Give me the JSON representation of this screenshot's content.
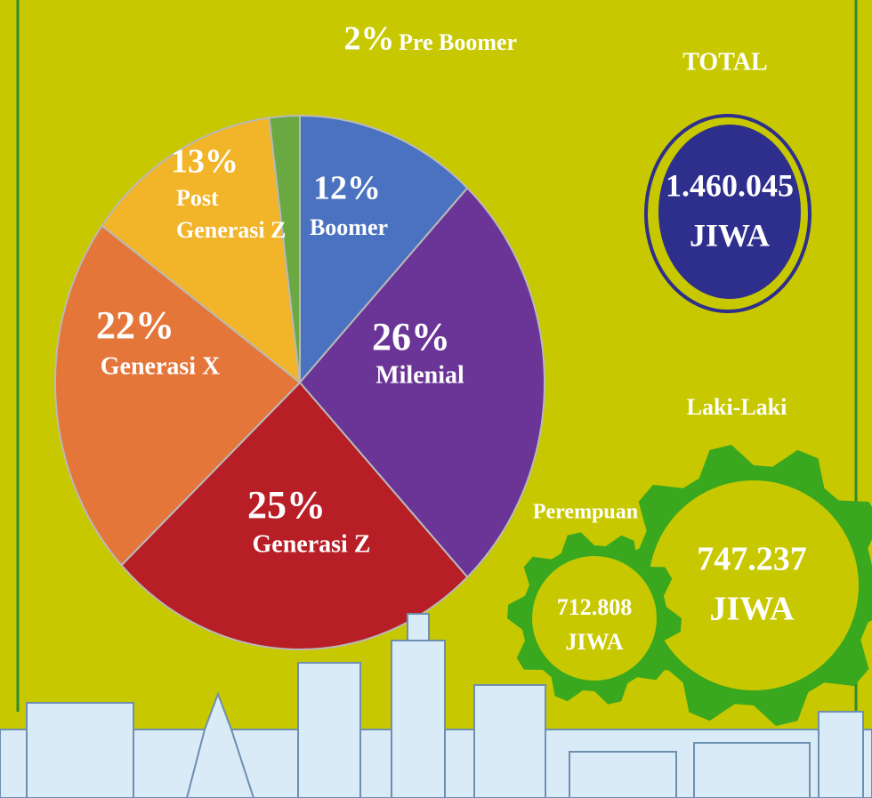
{
  "chart_data": {
    "type": "pie",
    "categories": [
      "Boomer",
      "Milenial",
      "Generasi Z",
      "Generasi X",
      "Post Generasi Z",
      "Pre Boomer"
    ],
    "values": [
      12,
      26,
      25,
      22,
      13,
      2
    ],
    "value_labels": [
      "12%",
      "26%",
      "25%",
      "22%",
      "13%",
      "2%"
    ],
    "colors": [
      "#4a72c0",
      "#6a3596",
      "#b81e26",
      "#e4763a",
      "#f2b428",
      "#6aa842"
    ]
  },
  "summary": {
    "total": {
      "label": "TOTAL",
      "value": "1.460.045",
      "unit": "JIWA"
    },
    "male": {
      "label": "Laki-Laki",
      "value": "747.237",
      "unit": "JIWA"
    },
    "female": {
      "label": "Perempuan",
      "value": "712.808",
      "unit": "JIWA"
    }
  }
}
